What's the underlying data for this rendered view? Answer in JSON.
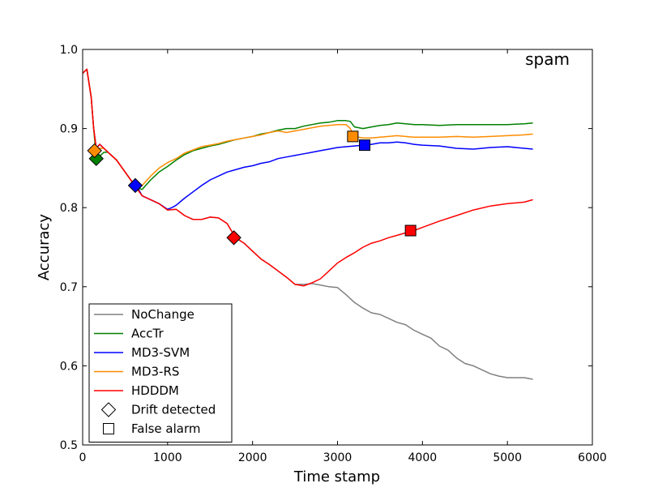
{
  "chart_data": {
    "type": "line",
    "title": "spam",
    "xlabel": "Time stamp",
    "ylabel": "Accuracy",
    "xlim": [
      0,
      6000
    ],
    "ylim": [
      0.5,
      1.0
    ],
    "xticks": [
      0,
      1000,
      2000,
      3000,
      4000,
      5000,
      6000
    ],
    "xtick_labels": [
      "0",
      "1000",
      "2000",
      "3000",
      "4000",
      "5000",
      "6000"
    ],
    "yticks": [
      0.5,
      0.6,
      0.7,
      0.8,
      0.9,
      1.0
    ],
    "ytick_labels": [
      "0.5",
      "0.6",
      "0.7",
      "0.8",
      "0.9",
      "1.0"
    ],
    "legend_position": "lower-left",
    "series": [
      {
        "name": "NoChange",
        "color": "#808080",
        "x": [
          0,
          50,
          100,
          130,
          160,
          200,
          250,
          300,
          400,
          500,
          600,
          700,
          800,
          900,
          1000,
          1100,
          1200,
          1300,
          1400,
          1500,
          1600,
          1700,
          1800,
          1900,
          2000,
          2100,
          2200,
          2300,
          2400,
          2500,
          2600,
          2700,
          2800,
          2900,
          3000,
          3100,
          3200,
          3300,
          3400,
          3500,
          3600,
          3700,
          3800,
          3900,
          4000,
          4100,
          4200,
          4300,
          4400,
          4500,
          4600,
          4700,
          4800,
          4900,
          5000,
          5100,
          5200,
          5300
        ],
        "y": [
          0.97,
          0.975,
          0.94,
          0.9,
          0.875,
          0.88,
          0.875,
          0.87,
          0.86,
          0.845,
          0.83,
          0.815,
          0.81,
          0.805,
          0.797,
          0.798,
          0.79,
          0.785,
          0.785,
          0.788,
          0.787,
          0.78,
          0.762,
          0.755,
          0.745,
          0.735,
          0.728,
          0.72,
          0.712,
          0.703,
          0.703,
          0.704,
          0.702,
          0.7,
          0.699,
          0.69,
          0.68,
          0.673,
          0.667,
          0.665,
          0.66,
          0.655,
          0.652,
          0.645,
          0.64,
          0.635,
          0.625,
          0.62,
          0.61,
          0.603,
          0.6,
          0.595,
          0.59,
          0.587,
          0.585,
          0.585,
          0.585,
          0.583
        ]
      },
      {
        "name": "AccTr",
        "color": "#008000",
        "x": [
          0,
          50,
          100,
          130,
          160,
          200,
          250,
          300,
          400,
          500,
          600,
          650,
          700,
          800,
          900,
          1000,
          1100,
          1200,
          1300,
          1400,
          1500,
          1600,
          1700,
          1800,
          1900,
          2000,
          2100,
          2200,
          2300,
          2400,
          2500,
          2600,
          2700,
          2800,
          2900,
          3000,
          3100,
          3150,
          3200,
          3300,
          3400,
          3500,
          3600,
          3700,
          3800,
          3900,
          4000,
          4200,
          4400,
          4600,
          4800,
          5000,
          5200,
          5300
        ],
        "y": [
          0.97,
          0.975,
          0.94,
          0.9,
          0.862,
          0.865,
          0.87,
          0.87,
          0.86,
          0.845,
          0.83,
          0.825,
          0.823,
          0.835,
          0.845,
          0.852,
          0.86,
          0.867,
          0.872,
          0.875,
          0.878,
          0.88,
          0.883,
          0.886,
          0.888,
          0.89,
          0.893,
          0.895,
          0.898,
          0.9,
          0.9,
          0.903,
          0.905,
          0.907,
          0.908,
          0.91,
          0.91,
          0.909,
          0.902,
          0.9,
          0.902,
          0.904,
          0.905,
          0.907,
          0.906,
          0.905,
          0.905,
          0.904,
          0.905,
          0.905,
          0.905,
          0.905,
          0.906,
          0.907
        ]
      },
      {
        "name": "MD3-SVM",
        "color": "#0000ff",
        "x": [
          0,
          50,
          100,
          130,
          160,
          200,
          250,
          300,
          400,
          500,
          600,
          650,
          700,
          800,
          900,
          1000,
          1050,
          1100,
          1200,
          1300,
          1400,
          1500,
          1600,
          1700,
          1800,
          1900,
          2000,
          2100,
          2200,
          2300,
          2400,
          2500,
          2600,
          2700,
          2800,
          2900,
          3000,
          3100,
          3200,
          3300,
          3400,
          3500,
          3600,
          3700,
          3800,
          3900,
          4000,
          4200,
          4400,
          4600,
          4800,
          5000,
          5200,
          5300
        ],
        "y": [
          0.97,
          0.975,
          0.94,
          0.9,
          0.875,
          0.88,
          0.875,
          0.87,
          0.86,
          0.845,
          0.83,
          0.825,
          0.815,
          0.81,
          0.805,
          0.798,
          0.8,
          0.803,
          0.812,
          0.82,
          0.828,
          0.835,
          0.84,
          0.845,
          0.848,
          0.851,
          0.853,
          0.856,
          0.858,
          0.862,
          0.864,
          0.866,
          0.868,
          0.87,
          0.872,
          0.874,
          0.876,
          0.877,
          0.878,
          0.879,
          0.88,
          0.882,
          0.882,
          0.883,
          0.882,
          0.88,
          0.879,
          0.878,
          0.875,
          0.874,
          0.876,
          0.877,
          0.875,
          0.874
        ]
      },
      {
        "name": "MD3-RS",
        "color": "#ff8c00",
        "x": [
          0,
          50,
          100,
          130,
          160,
          200,
          250,
          300,
          400,
          500,
          600,
          650,
          700,
          800,
          900,
          1000,
          1100,
          1200,
          1300,
          1400,
          1500,
          1600,
          1700,
          1800,
          1900,
          2000,
          2100,
          2200,
          2300,
          2400,
          2500,
          2600,
          2700,
          2800,
          2900,
          3000,
          3100,
          3150,
          3200,
          3300,
          3400,
          3500,
          3600,
          3700,
          3800,
          3900,
          4000,
          4200,
          4400,
          4600,
          4800,
          5000,
          5200,
          5300
        ],
        "y": [
          0.97,
          0.975,
          0.94,
          0.9,
          0.872,
          0.875,
          0.875,
          0.87,
          0.86,
          0.845,
          0.83,
          0.825,
          0.828,
          0.84,
          0.85,
          0.857,
          0.862,
          0.869,
          0.873,
          0.877,
          0.879,
          0.881,
          0.884,
          0.886,
          0.888,
          0.89,
          0.892,
          0.895,
          0.897,
          0.895,
          0.897,
          0.899,
          0.901,
          0.903,
          0.904,
          0.905,
          0.905,
          0.9,
          0.89,
          0.888,
          0.888,
          0.889,
          0.89,
          0.891,
          0.89,
          0.889,
          0.889,
          0.889,
          0.89,
          0.889,
          0.89,
          0.891,
          0.892,
          0.893
        ]
      },
      {
        "name": "HDDDM",
        "color": "#ff0000",
        "x": [
          0,
          50,
          100,
          130,
          160,
          200,
          250,
          300,
          400,
          500,
          600,
          700,
          800,
          900,
          1000,
          1100,
          1200,
          1300,
          1400,
          1500,
          1600,
          1700,
          1800,
          1900,
          2000,
          2100,
          2200,
          2300,
          2400,
          2500,
          2600,
          2700,
          2800,
          2900,
          3000,
          3100,
          3200,
          3300,
          3400,
          3500,
          3600,
          3700,
          3800,
          3900,
          4000,
          4200,
          4400,
          4600,
          4800,
          5000,
          5200,
          5300
        ],
        "y": [
          0.97,
          0.975,
          0.94,
          0.9,
          0.875,
          0.88,
          0.875,
          0.87,
          0.86,
          0.845,
          0.83,
          0.815,
          0.81,
          0.805,
          0.797,
          0.798,
          0.79,
          0.785,
          0.785,
          0.788,
          0.787,
          0.78,
          0.762,
          0.755,
          0.745,
          0.735,
          0.728,
          0.72,
          0.712,
          0.703,
          0.701,
          0.705,
          0.71,
          0.72,
          0.73,
          0.737,
          0.743,
          0.75,
          0.755,
          0.758,
          0.762,
          0.765,
          0.768,
          0.771,
          0.775,
          0.783,
          0.79,
          0.797,
          0.802,
          0.805,
          0.807,
          0.81
        ]
      }
    ],
    "markers": [
      {
        "series": "AccTr",
        "type": "drift",
        "x": 160,
        "y": 0.862
      },
      {
        "series": "MD3-RS",
        "type": "drift",
        "x": 140,
        "y": 0.872
      },
      {
        "series": "MD3-SVM",
        "type": "drift",
        "x": 620,
        "y": 0.828
      },
      {
        "series": "HDDDM",
        "type": "drift",
        "x": 1780,
        "y": 0.762
      },
      {
        "series": "MD3-RS",
        "type": "false-alarm",
        "x": 3180,
        "y": 0.89
      },
      {
        "series": "MD3-SVM",
        "type": "false-alarm",
        "x": 3320,
        "y": 0.879
      },
      {
        "series": "HDDDM",
        "type": "false-alarm",
        "x": 3860,
        "y": 0.771
      }
    ],
    "legend": [
      {
        "label": "NoChange",
        "kind": "line",
        "color": "#808080"
      },
      {
        "label": "AccTr",
        "kind": "line",
        "color": "#008000"
      },
      {
        "label": "MD3-SVM",
        "kind": "line",
        "color": "#0000ff"
      },
      {
        "label": "MD3-RS",
        "kind": "line",
        "color": "#ff8c00"
      },
      {
        "label": "HDDDM",
        "kind": "line",
        "color": "#ff0000"
      },
      {
        "label": "Drift detected",
        "kind": "diamond",
        "color": "#ffffff"
      },
      {
        "label": "False alarm",
        "kind": "square",
        "color": "#ffffff"
      }
    ]
  }
}
